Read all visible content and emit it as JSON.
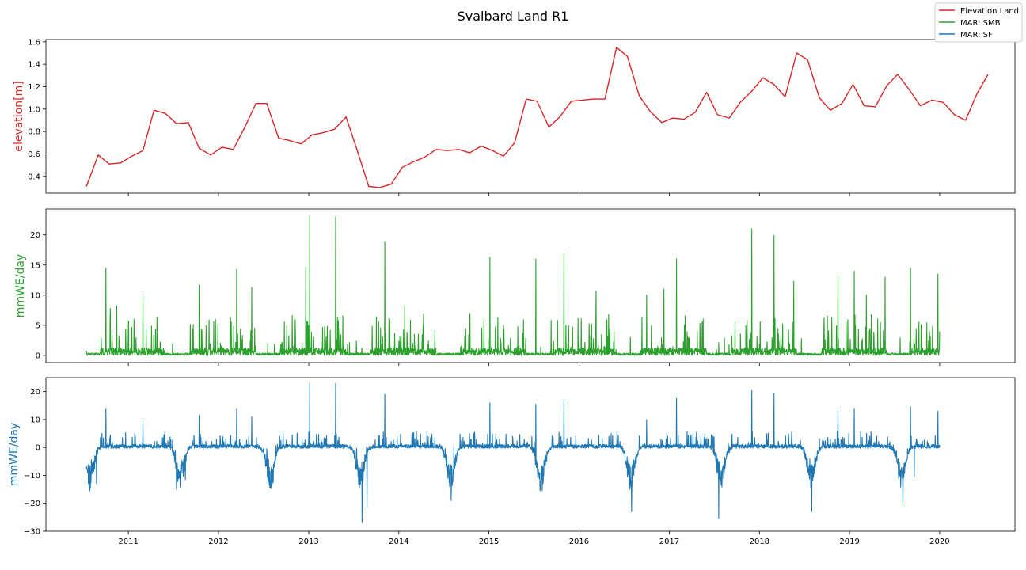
{
  "title": "Svalbard Land R1",
  "colors": {
    "elevation": "#d62728",
    "smb": "#2ca02c",
    "sf": "#1f77b4"
  },
  "legend": {
    "placement": "top-right",
    "entries": [
      {
        "label": "Elevation Land",
        "color": "#d62728"
      },
      {
        "label": "MAR: SMB",
        "color": "#2ca02c"
      },
      {
        "label": "MAR: SF",
        "color": "#1f77b4"
      }
    ]
  },
  "chart_data": [
    {
      "type": "line",
      "ylabel": "elevation[m]",
      "ylabel_color": "#d62728",
      "xlim": [
        "2010-02-01",
        "2020-11-01"
      ],
      "ylim": [
        0.25,
        1.62
      ],
      "yticks": [
        "0.4",
        "0.6",
        "0.8",
        "1.0",
        "1.2",
        "1.4",
        "1.6"
      ],
      "xticks": [],
      "series": [
        {
          "name": "Elevation Land",
          "color": "#d62728",
          "points": [
            [
              "2010-07-15",
              0.31
            ],
            [
              "2010-09-01",
              0.59
            ],
            [
              "2010-10-15",
              0.51
            ],
            [
              "2010-12-01",
              0.52
            ],
            [
              "2011-01-15",
              0.58
            ],
            [
              "2011-03-01",
              0.63
            ],
            [
              "2011-04-15",
              0.99
            ],
            [
              "2011-06-01",
              0.96
            ],
            [
              "2011-07-15",
              0.87
            ],
            [
              "2011-09-01",
              0.88
            ],
            [
              "2011-10-15",
              0.65
            ],
            [
              "2011-12-01",
              0.59
            ],
            [
              "2012-01-15",
              0.66
            ],
            [
              "2012-03-01",
              0.64
            ],
            [
              "2012-04-15",
              0.83
            ],
            [
              "2012-06-01",
              1.05
            ],
            [
              "2012-07-15",
              1.05
            ],
            [
              "2012-09-01",
              0.74
            ],
            [
              "2012-10-15",
              0.72
            ],
            [
              "2012-12-01",
              0.69
            ],
            [
              "2013-01-15",
              0.77
            ],
            [
              "2013-03-01",
              0.79
            ],
            [
              "2013-04-15",
              0.82
            ],
            [
              "2013-06-01",
              0.93
            ],
            [
              "2013-07-15",
              0.64
            ],
            [
              "2013-09-01",
              0.31
            ],
            [
              "2013-10-15",
              0.3
            ],
            [
              "2013-12-01",
              0.33
            ],
            [
              "2014-01-15",
              0.48
            ],
            [
              "2014-03-01",
              0.53
            ],
            [
              "2014-04-15",
              0.57
            ],
            [
              "2014-06-01",
              0.64
            ],
            [
              "2014-07-15",
              0.63
            ],
            [
              "2014-09-01",
              0.64
            ],
            [
              "2014-10-15",
              0.61
            ],
            [
              "2014-12-01",
              0.67
            ],
            [
              "2015-01-15",
              0.63
            ],
            [
              "2015-03-01",
              0.58
            ],
            [
              "2015-04-15",
              0.7
            ],
            [
              "2015-06-01",
              1.09
            ],
            [
              "2015-07-15",
              1.07
            ],
            [
              "2015-09-01",
              0.84
            ],
            [
              "2015-10-15",
              0.93
            ],
            [
              "2015-12-01",
              1.07
            ],
            [
              "2016-01-15",
              1.08
            ],
            [
              "2016-03-01",
              1.09
            ],
            [
              "2016-04-15",
              1.09
            ],
            [
              "2016-06-01",
              1.55
            ],
            [
              "2016-07-15",
              1.47
            ],
            [
              "2016-09-01",
              1.12
            ],
            [
              "2016-10-15",
              0.98
            ],
            [
              "2016-12-01",
              0.88
            ],
            [
              "2017-01-15",
              0.92
            ],
            [
              "2017-03-01",
              0.91
            ],
            [
              "2017-04-15",
              0.97
            ],
            [
              "2017-06-01",
              1.15
            ],
            [
              "2017-07-15",
              0.95
            ],
            [
              "2017-09-01",
              0.92
            ],
            [
              "2017-10-15",
              1.06
            ],
            [
              "2017-12-01",
              1.16
            ],
            [
              "2018-01-15",
              1.28
            ],
            [
              "2018-03-01",
              1.22
            ],
            [
              "2018-04-15",
              1.11
            ],
            [
              "2018-06-01",
              1.5
            ],
            [
              "2018-07-15",
              1.44
            ],
            [
              "2018-09-01",
              1.1
            ],
            [
              "2018-10-15",
              0.99
            ],
            [
              "2018-12-01",
              1.05
            ],
            [
              "2019-01-15",
              1.22
            ],
            [
              "2019-03-01",
              1.03
            ],
            [
              "2019-04-15",
              1.02
            ],
            [
              "2019-06-01",
              1.21
            ],
            [
              "2019-07-15",
              1.31
            ],
            [
              "2019-09-01",
              1.17
            ],
            [
              "2019-10-15",
              1.03
            ],
            [
              "2019-12-01",
              1.08
            ],
            [
              "2020-01-15",
              1.06
            ],
            [
              "2020-03-01",
              0.95
            ],
            [
              "2020-04-15",
              0.9
            ],
            [
              "2020-06-01",
              1.14
            ],
            [
              "2020-07-15",
              1.31
            ]
          ]
        }
      ]
    },
    {
      "type": "line",
      "ylabel": "mmWE/day",
      "ylabel_color": "#2ca02c",
      "xlim": [
        "2010-02-01",
        "2020-11-01"
      ],
      "ylim": [
        -1.2,
        24.3
      ],
      "yticks": [
        "0",
        "5",
        "10",
        "15",
        "20"
      ],
      "xticks": [],
      "series": [
        {
          "name": "MAR: SMB",
          "color": "#2ca02c",
          "daily_range": [
            "2010-07-15",
            "2020-01-01"
          ],
          "peaks": [
            [
              "2010-10-02",
              14.5
            ],
            [
              "2010-10-20",
              7.8
            ],
            [
              "2010-11-15",
              8.2
            ],
            [
              "2011-03-01",
              10.2
            ],
            [
              "2011-10-15",
              11.7
            ],
            [
              "2012-03-15",
              14.3
            ],
            [
              "2012-05-15",
              11.3
            ],
            [
              "2012-12-20",
              14.7
            ],
            [
              "2013-01-05",
              23.2
            ],
            [
              "2013-04-20",
              23.0
            ],
            [
              "2013-11-05",
              18.8
            ],
            [
              "2014-01-25",
              8.3
            ],
            [
              "2015-01-05",
              16.3
            ],
            [
              "2015-07-10",
              16.0
            ],
            [
              "2015-11-01",
              17.0
            ],
            [
              "2016-03-10",
              10.6
            ],
            [
              "2016-10-01",
              10.0
            ],
            [
              "2016-12-10",
              11.0
            ],
            [
              "2017-01-30",
              16.0
            ],
            [
              "2017-12-01",
              21.0
            ],
            [
              "2018-03-01",
              19.9
            ],
            [
              "2018-05-20",
              12.3
            ],
            [
              "2018-11-15",
              13.2
            ],
            [
              "2019-01-20",
              14.0
            ],
            [
              "2019-03-10",
              10.0
            ],
            [
              "2019-05-25",
              13.0
            ],
            [
              "2019-09-05",
              14.5
            ],
            [
              "2019-12-25",
              13.5
            ]
          ]
        }
      ]
    },
    {
      "type": "line",
      "ylabel": "mmWE/day",
      "ylabel_color": "#1f77b4",
      "xlim": [
        "2010-02-01",
        "2020-11-01"
      ],
      "ylim": [
        -30,
        25
      ],
      "yticks": [
        "−30",
        "−20",
        "−10",
        "0",
        "10",
        "20"
      ],
      "xticks": [
        "2011",
        "2012",
        "2013",
        "2014",
        "2015",
        "2016",
        "2017",
        "2018",
        "2019",
        "2020"
      ],
      "series": [
        {
          "name": "MAR: SF",
          "color": "#1f77b4",
          "daily_range": [
            "2010-07-15",
            "2020-01-01"
          ],
          "peaks": [
            [
              "2010-10-02",
              14.0
            ],
            [
              "2011-03-01",
              9.5
            ],
            [
              "2011-10-15",
              11.5
            ],
            [
              "2012-03-15",
              14.0
            ],
            [
              "2012-05-15",
              11.0
            ],
            [
              "2013-01-05",
              23.0
            ],
            [
              "2013-04-20",
              23.0
            ],
            [
              "2013-11-05",
              19.0
            ],
            [
              "2015-01-05",
              16.0
            ],
            [
              "2015-07-10",
              15.5
            ],
            [
              "2015-11-01",
              17.0
            ],
            [
              "2016-10-01",
              10.0
            ],
            [
              "2017-01-30",
              17.5
            ],
            [
              "2017-12-01",
              20.5
            ],
            [
              "2018-03-01",
              19.5
            ],
            [
              "2018-11-15",
              13.0
            ],
            [
              "2019-01-20",
              14.0
            ],
            [
              "2019-09-05",
              14.5
            ],
            [
              "2019-12-25",
              13.0
            ]
          ],
          "troughs": [
            [
              "2010-07-20",
              -9.0
            ],
            [
              "2010-08-25",
              -13.0
            ],
            [
              "2011-07-15",
              -15.0
            ],
            [
              "2011-08-20",
              -11.5
            ],
            [
              "2012-08-10",
              -12.5
            ],
            [
              "2013-08-05",
              -27.0
            ],
            [
              "2013-08-25",
              -21.5
            ],
            [
              "2014-08-01",
              -19.0
            ],
            [
              "2015-08-05",
              -15.5
            ],
            [
              "2016-08-01",
              -23.0
            ],
            [
              "2017-07-20",
              -25.5
            ],
            [
              "2018-08-01",
              -23.0
            ],
            [
              "2019-08-05",
              -20.5
            ],
            [
              "2019-09-20",
              -10.5
            ]
          ]
        }
      ]
    }
  ]
}
